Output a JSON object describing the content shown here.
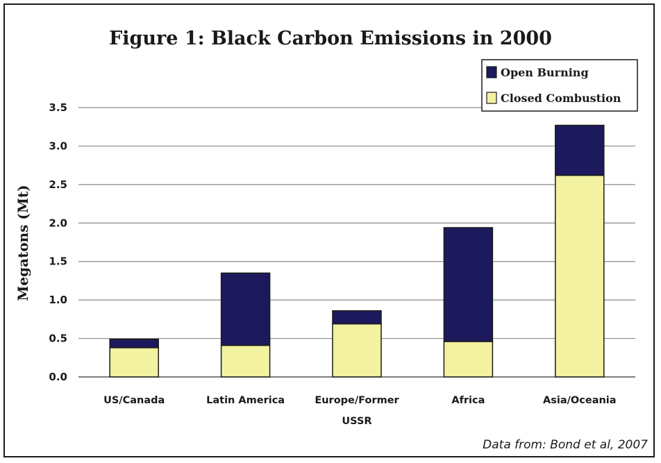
{
  "chart_data": {
    "type": "bar",
    "stacked": true,
    "title": "Figure 1:  Black Carbon Emissions in 2000",
    "ylabel": "Megatons (Mt)",
    "xlabel": "",
    "ylim": [
      0,
      3.5
    ],
    "yticks": [
      "0.0",
      "0.5",
      "1.0",
      "1.5",
      "2.0",
      "2.5",
      "3.0",
      "3.5"
    ],
    "ytick_values": [
      0,
      0.5,
      1.0,
      1.5,
      2.0,
      2.5,
      3.0,
      3.5
    ],
    "grid": true,
    "legend_position": "top-right",
    "categories": [
      [
        "US/Canada"
      ],
      [
        "Latin America"
      ],
      [
        "Europe/Former",
        "USSR"
      ],
      [
        "Africa"
      ],
      [
        "Asia/Oceania"
      ]
    ],
    "series": [
      {
        "name": "Closed Combustion",
        "color": "#f2f2a0",
        "values": [
          0.38,
          0.41,
          0.69,
          0.46,
          2.62
        ]
      },
      {
        "name": "Open Burning",
        "color": "#1c1a5c",
        "values": [
          0.11,
          0.94,
          0.17,
          1.48,
          0.65
        ]
      }
    ],
    "source_note": "Data from: Bond et al, 2007"
  }
}
